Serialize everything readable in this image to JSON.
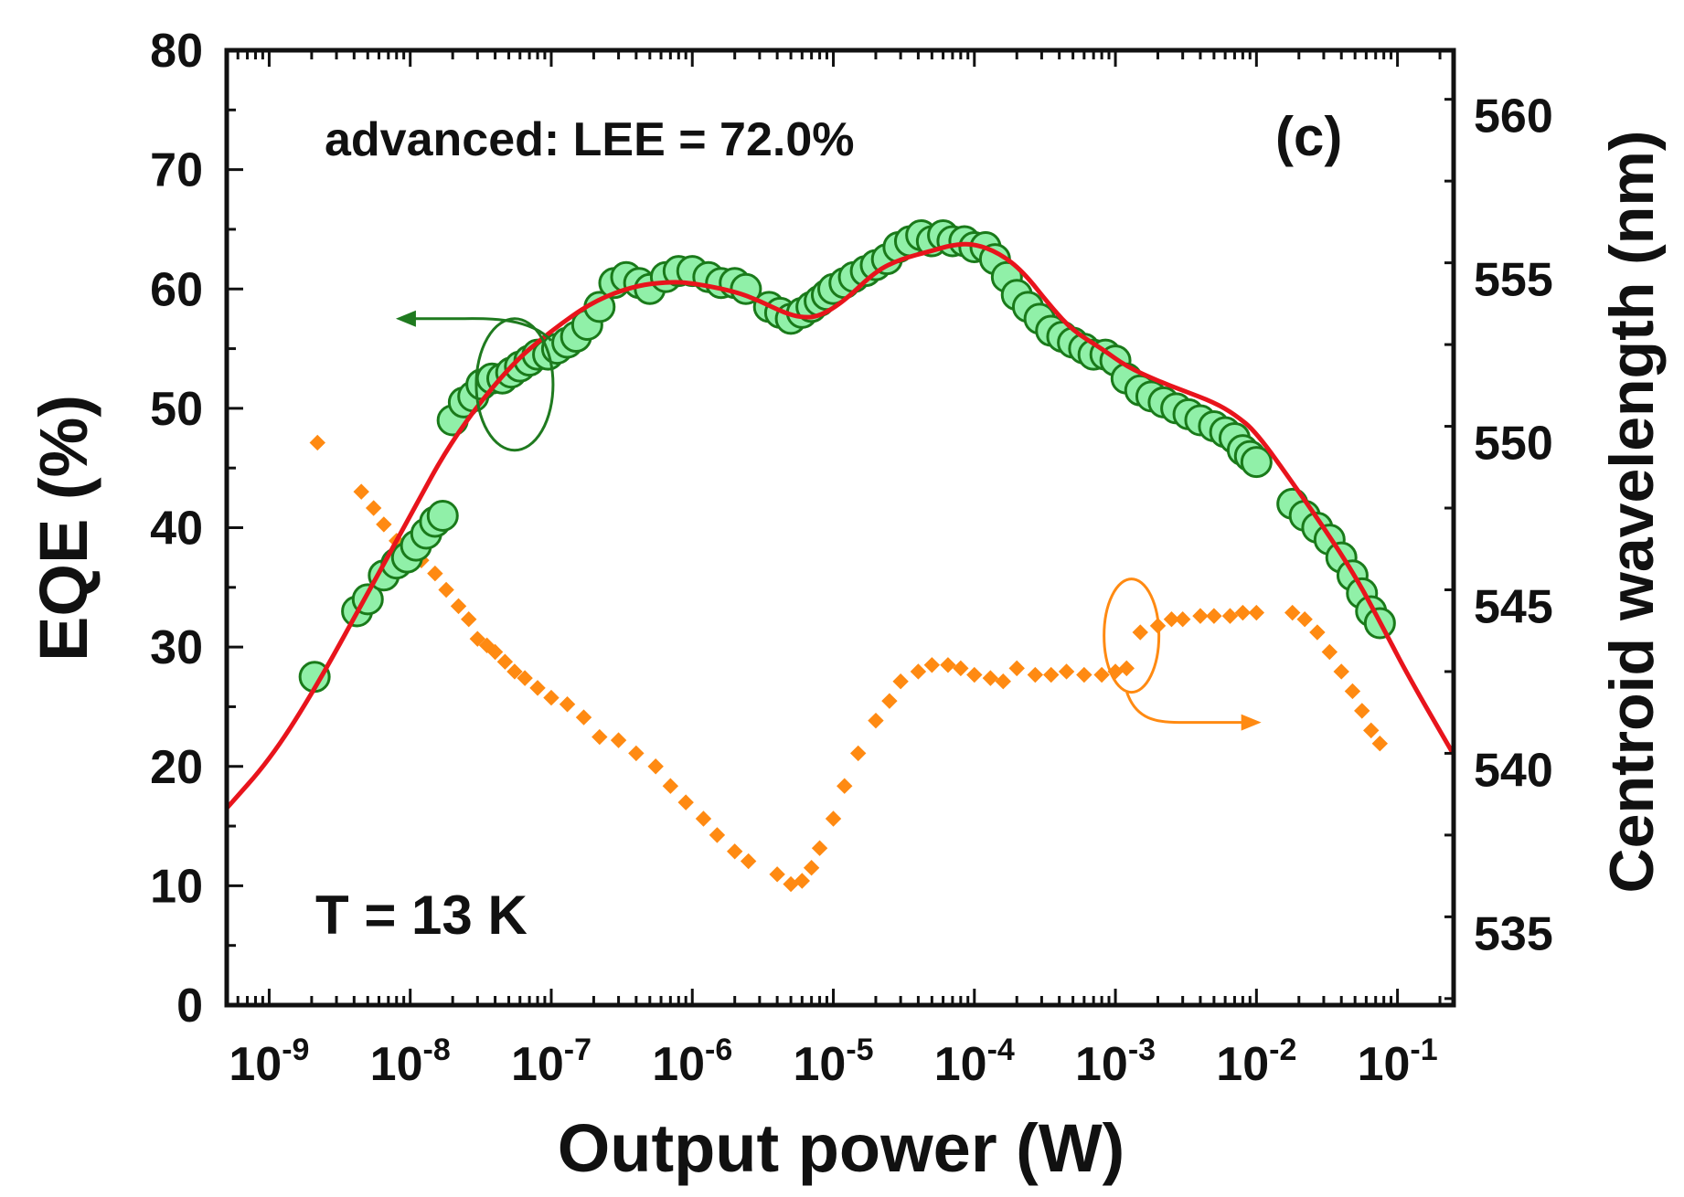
{
  "chart_data": {
    "type": "scatter",
    "title": "",
    "subtitle": "advanced:  LEE = 72.0%",
    "panel_label": "(c)",
    "temperature_label": "T = 13 K",
    "xlabel": "Output power (W)",
    "ylabel": "EQE (%)",
    "y2label": "Centroid wavelength (nm)",
    "xscale": "log",
    "xlim": [
      5e-10,
      0.25
    ],
    "ylim": [
      0,
      80
    ],
    "y2lim": [
      532.8,
      562
    ],
    "grid": false,
    "x_tick_values": [
      1e-09,
      1e-08,
      1e-07,
      1e-06,
      1e-05,
      0.0001,
      0.001,
      0.01,
      0.1
    ],
    "x_tick_bases": [
      "10",
      "10",
      "10",
      "10",
      "10",
      "10",
      "10",
      "10",
      "10"
    ],
    "x_tick_exponents": [
      "-9",
      "-8",
      "-7",
      "-6",
      "-5",
      "-4",
      "-3",
      "-2",
      "-1"
    ],
    "y_ticks": [
      0,
      10,
      20,
      30,
      40,
      50,
      60,
      70,
      80
    ],
    "y_tick_labels": [
      "0",
      "10",
      "20",
      "30",
      "40",
      "50",
      "60",
      "70",
      "80"
    ],
    "y2_ticks": [
      535,
      540,
      545,
      550,
      555,
      560
    ],
    "y2_tick_labels": [
      "535",
      "540",
      "545",
      "550",
      "555",
      "560"
    ],
    "colors": {
      "eqe_fill": "#90f0a8",
      "eqe_edge": "#1a7a1a",
      "fit": "#e8141c",
      "wavelength": "#ff8a12",
      "eqe_arrow": "#1f7a1f",
      "wl_arrow": "#ff8a12",
      "axis": "#111111"
    },
    "series": [
      {
        "name": "EQE data",
        "axis": "left",
        "marker": "circle",
        "x": [
          2.1e-09,
          4.2e-09,
          5e-09,
          6.5e-09,
          8e-09,
          9.5e-09,
          1.1e-08,
          1.3e-08,
          1.5e-08,
          1.7e-08,
          2e-08,
          2.4e-08,
          2.8e-08,
          3.2e-08,
          3.8e-08,
          4.5e-08,
          5.2e-08,
          6e-08,
          7e-08,
          8e-08,
          9.5e-08,
          1.1e-07,
          1.3e-07,
          1.5e-07,
          1.8e-07,
          2.2e-07,
          2.8e-07,
          3.4e-07,
          4.2e-07,
          5e-07,
          6.5e-07,
          8e-07,
          1e-06,
          1.3e-06,
          1.6e-06,
          2e-06,
          2.4e-06,
          3.5e-06,
          4.2e-06,
          5e-06,
          6e-06,
          7e-06,
          8e-06,
          9e-06,
          1e-05,
          1.2e-05,
          1.4e-05,
          1.7e-05,
          2e-05,
          2.4e-05,
          2.9e-05,
          3.5e-05,
          4.2e-05,
          5e-05,
          6e-05,
          7e-05,
          8.5e-05,
          0.0001,
          0.00012,
          0.00014,
          0.00017,
          0.0002,
          0.00024,
          0.00029,
          0.00035,
          0.00042,
          0.0005,
          0.0006,
          0.0007,
          0.00085,
          0.001,
          0.0012,
          0.0015,
          0.0018,
          0.0022,
          0.0027,
          0.0033,
          0.004,
          0.005,
          0.006,
          0.007,
          0.008,
          0.009,
          0.01,
          0.018,
          0.022,
          0.027,
          0.033,
          0.04,
          0.048,
          0.056,
          0.065,
          0.075
        ],
        "y": [
          27.5,
          33.0,
          34.0,
          36.0,
          37.0,
          37.5,
          38.5,
          39.5,
          40.5,
          41.0,
          49.0,
          50.5,
          51.0,
          52.0,
          52.5,
          52.5,
          53.0,
          53.5,
          54.0,
          54.5,
          54.5,
          55.0,
          55.5,
          56.0,
          57.0,
          58.5,
          60.5,
          61.0,
          60.5,
          60.0,
          61.0,
          61.5,
          61.5,
          61.0,
          60.5,
          60.5,
          60.0,
          58.5,
          58.0,
          57.5,
          58.0,
          58.5,
          59.0,
          59.5,
          60.0,
          60.5,
          61.0,
          61.5,
          62.0,
          62.5,
          63.5,
          64.0,
          64.5,
          64.0,
          64.5,
          64.0,
          64.0,
          63.5,
          63.5,
          62.5,
          61.0,
          59.5,
          58.5,
          57.5,
          56.5,
          56.0,
          55.5,
          55.0,
          54.5,
          54.5,
          54.0,
          52.5,
          51.5,
          51.0,
          50.5,
          50.0,
          49.5,
          49.0,
          48.5,
          48.0,
          47.5,
          46.5,
          46.0,
          45.5,
          42.0,
          41.0,
          40.0,
          39.0,
          37.5,
          36.0,
          34.5,
          33.0,
          32.0
        ]
      },
      {
        "name": "EQE fit",
        "axis": "left",
        "marker": "line",
        "x": [
          5e-10,
          1e-09,
          2e-09,
          5e-09,
          1e-08,
          2e-08,
          5e-08,
          1e-07,
          2e-07,
          4e-07,
          7e-07,
          1e-06,
          2e-06,
          3e-06,
          4.5e-06,
          6e-06,
          8e-06,
          1.2e-05,
          2e-05,
          3e-05,
          5e-05,
          7e-05,
          0.0001,
          0.00015,
          0.00022,
          0.00035,
          0.0005,
          0.0008,
          0.0012,
          0.002,
          0.003,
          0.005,
          0.007,
          0.01,
          0.02,
          0.03,
          0.05,
          0.08,
          0.12,
          0.25
        ],
        "y": [
          16.5,
          20.5,
          26.0,
          34.5,
          41.0,
          47.5,
          53.5,
          56.5,
          59.0,
          60.3,
          60.6,
          60.5,
          59.8,
          59.0,
          58.0,
          57.6,
          57.7,
          59.0,
          61.5,
          62.5,
          63.2,
          63.7,
          63.8,
          63.0,
          61.5,
          58.5,
          56.5,
          55.0,
          53.5,
          52.3,
          51.5,
          50.5,
          49.5,
          48.0,
          43.0,
          40.0,
          36.0,
          31.5,
          27.5,
          21.0
        ]
      },
      {
        "name": "Centroid wavelength",
        "axis": "right",
        "marker": "diamond",
        "x": [
          2.2e-09,
          4.5e-09,
          5.5e-09,
          6.5e-09,
          8e-09,
          1e-08,
          1.2e-08,
          1.5e-08,
          1.8e-08,
          2.2e-08,
          2.6e-08,
          3e-08,
          3.5e-08,
          4e-08,
          4.7e-08,
          5.5e-08,
          6.5e-08,
          8e-08,
          1e-07,
          1.3e-07,
          1.7e-07,
          2.2e-07,
          3e-07,
          4e-07,
          5.5e-07,
          7e-07,
          9e-07,
          1.2e-06,
          1.5e-06,
          2e-06,
          2.5e-06,
          4e-06,
          5e-06,
          6e-06,
          7e-06,
          8e-06,
          1e-05,
          1.2e-05,
          1.5e-05,
          2e-05,
          2.5e-05,
          3e-05,
          4e-05,
          5e-05,
          6.5e-05,
          8e-05,
          0.0001,
          0.00013,
          0.00016,
          0.0002,
          0.00027,
          0.00035,
          0.00045,
          0.0006,
          0.0008,
          0.001,
          0.0012,
          0.0015,
          0.002,
          0.0025,
          0.003,
          0.004,
          0.005,
          0.0065,
          0.008,
          0.01,
          0.018,
          0.022,
          0.027,
          0.033,
          0.04,
          0.048,
          0.056,
          0.065,
          0.075
        ],
        "y": [
          550.0,
          548.5,
          548.0,
          547.5,
          547.0,
          546.8,
          546.4,
          546.0,
          545.5,
          545.0,
          544.6,
          544.0,
          543.8,
          543.6,
          543.3,
          543.0,
          542.8,
          542.5,
          542.2,
          542.0,
          541.6,
          541.0,
          540.9,
          540.5,
          540.1,
          539.5,
          539.0,
          538.5,
          538.0,
          537.5,
          537.2,
          536.8,
          536.5,
          536.6,
          537.0,
          537.6,
          538.5,
          539.5,
          540.5,
          541.5,
          542.1,
          542.7,
          543.0,
          543.2,
          543.2,
          543.1,
          542.9,
          542.8,
          542.7,
          543.1,
          542.9,
          542.9,
          543.0,
          542.9,
          542.9,
          543.0,
          543.1,
          544.2,
          544.4,
          544.6,
          544.6,
          544.7,
          544.7,
          544.7,
          544.8,
          544.8,
          544.8,
          544.6,
          544.2,
          543.6,
          543.0,
          542.4,
          541.8,
          541.2,
          540.8
        ]
      }
    ],
    "annotations": [
      {
        "text": "advanced:  LEE = 72.0%",
        "x": 3e-08,
        "y": 72.5
      },
      {
        "text": "(c)",
        "x": 0.025,
        "y": 72.5
      },
      {
        "text": "T = 13 K",
        "x": 6e-09,
        "y": 7.0
      }
    ]
  }
}
